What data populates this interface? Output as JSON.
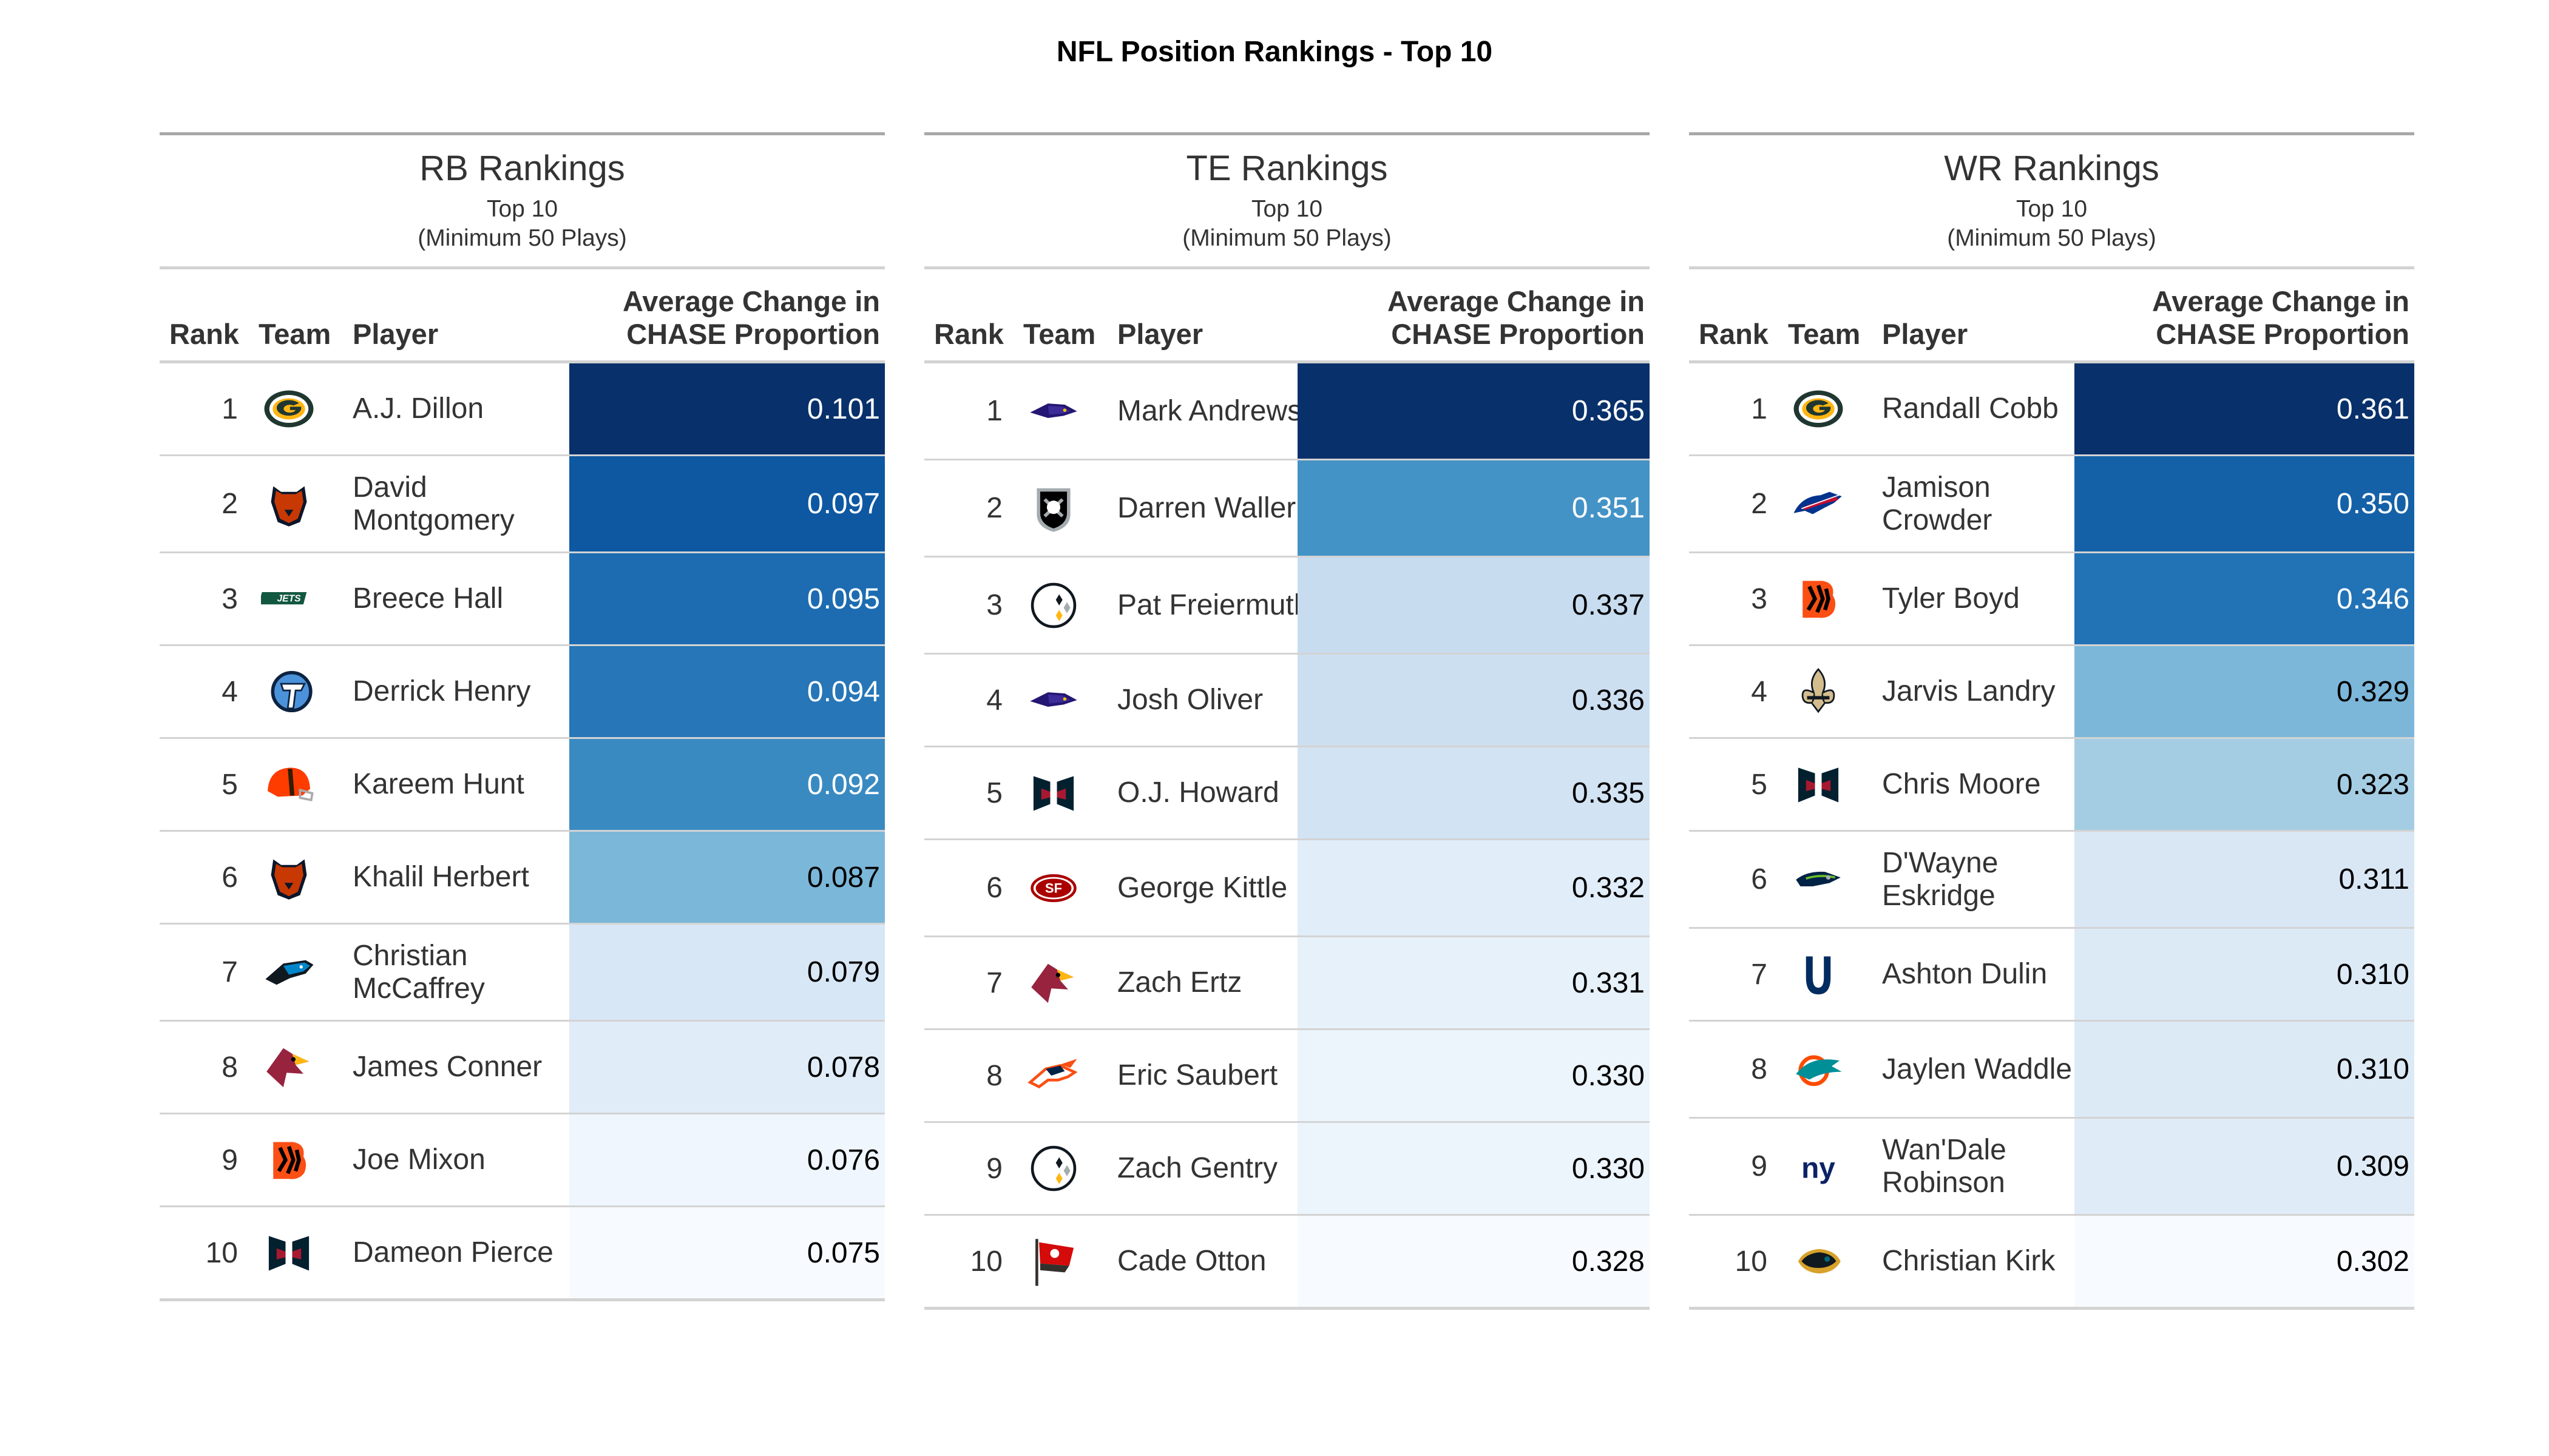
{
  "title": "NFL Position Rankings - Top 10",
  "chart_data": {
    "type": "table",
    "title": "NFL Position Rankings - Top 10",
    "columns": [
      "Rank",
      "Team",
      "Player",
      "Average Change in CHASE Proportion"
    ],
    "tables": [
      {
        "title": "RB Rankings",
        "subtitle_line1": "Top 10",
        "subtitle_line2": "(Minimum 50 Plays)",
        "header": {
          "rank": "Rank",
          "team": "Team",
          "player": "Player",
          "value_line1": "Average Change in",
          "value_line2": "CHASE Proportion"
        },
        "rows": [
          {
            "rank": "1",
            "team": "GB",
            "player": "A.J. Dillon",
            "value": "0.101"
          },
          {
            "rank": "2",
            "team": "CHI",
            "player": "David Montgomery",
            "value": "0.097"
          },
          {
            "rank": "3",
            "team": "NYJ",
            "player": "Breece Hall",
            "value": "0.095"
          },
          {
            "rank": "4",
            "team": "TEN",
            "player": "Derrick Henry",
            "value": "0.094"
          },
          {
            "rank": "5",
            "team": "CLE",
            "player": "Kareem Hunt",
            "value": "0.092"
          },
          {
            "rank": "6",
            "team": "CHI",
            "player": "Khalil Herbert",
            "value": "0.087"
          },
          {
            "rank": "7",
            "team": "CAR",
            "player": "Christian McCaffrey",
            "value": "0.079"
          },
          {
            "rank": "8",
            "team": "ARI",
            "player": "James Conner",
            "value": "0.078"
          },
          {
            "rank": "9",
            "team": "CIN",
            "player": "Joe Mixon",
            "value": "0.076"
          },
          {
            "rank": "10",
            "team": "HOU",
            "player": "Dameon Pierce",
            "value": "0.075"
          }
        ]
      },
      {
        "title": "TE Rankings",
        "subtitle_line1": "Top 10",
        "subtitle_line2": "(Minimum 50 Plays)",
        "header": {
          "rank": "Rank",
          "team": "Team",
          "player": "Player",
          "value_line1": "Average Change in",
          "value_line2": "CHASE Proportion"
        },
        "rows": [
          {
            "rank": "1",
            "team": "BAL",
            "player": "Mark Andrews",
            "value": "0.365"
          },
          {
            "rank": "2",
            "team": "LV",
            "player": "Darren Waller",
            "value": "0.351"
          },
          {
            "rank": "3",
            "team": "PIT",
            "player": "Pat Freiermuth",
            "value": "0.337"
          },
          {
            "rank": "4",
            "team": "BAL",
            "player": "Josh Oliver",
            "value": "0.336"
          },
          {
            "rank": "5",
            "team": "HOU",
            "player": "O.J. Howard",
            "value": "0.335"
          },
          {
            "rank": "6",
            "team": "SF",
            "player": "George Kittle",
            "value": "0.332"
          },
          {
            "rank": "7",
            "team": "ARI",
            "player": "Zach Ertz",
            "value": "0.331"
          },
          {
            "rank": "8",
            "team": "DEN",
            "player": "Eric Saubert",
            "value": "0.330"
          },
          {
            "rank": "9",
            "team": "PIT",
            "player": "Zach Gentry",
            "value": "0.330"
          },
          {
            "rank": "10",
            "team": "TB",
            "player": "Cade Otton",
            "value": "0.328"
          }
        ]
      },
      {
        "title": "WR Rankings",
        "subtitle_line1": "Top 10",
        "subtitle_line2": "(Minimum 50 Plays)",
        "header": {
          "rank": "Rank",
          "team": "Team",
          "player": "Player",
          "value_line1": "Average Change in",
          "value_line2": "CHASE Proportion"
        },
        "rows": [
          {
            "rank": "1",
            "team": "GB",
            "player": "Randall Cobb",
            "value": "0.361"
          },
          {
            "rank": "2",
            "team": "BUF",
            "player": "Jamison Crowder",
            "value": "0.350"
          },
          {
            "rank": "3",
            "team": "CIN",
            "player": "Tyler Boyd",
            "value": "0.346"
          },
          {
            "rank": "4",
            "team": "NO",
            "player": "Jarvis Landry",
            "value": "0.329"
          },
          {
            "rank": "5",
            "team": "HOU",
            "player": "Chris Moore",
            "value": "0.323"
          },
          {
            "rank": "6",
            "team": "SEA",
            "player": "D'Wayne Eskridge",
            "value": "0.311"
          },
          {
            "rank": "7",
            "team": "IND",
            "player": "Ashton Dulin",
            "value": "0.310"
          },
          {
            "rank": "8",
            "team": "MIA",
            "player": "Jaylen Waddle",
            "value": "0.310"
          },
          {
            "rank": "9",
            "team": "NYG",
            "player": "Wan'Dale Robinson",
            "value": "0.309"
          },
          {
            "rank": "10",
            "team": "JAX",
            "player": "Christian Kirk",
            "value": "0.302"
          }
        ]
      }
    ]
  },
  "color_scale": [
    "#f7fbff",
    "#deebf7",
    "#c6dbef",
    "#9ecae1",
    "#6baed6",
    "#4292c6",
    "#2171b5",
    "#08519c",
    "#08306b"
  ],
  "team_logo_icons": {
    "GB": {
      "icon": "packers-g-icon",
      "colors": [
        "#203731",
        "#FFB612"
      ]
    },
    "CHI": {
      "icon": "bears-head-icon",
      "colors": [
        "#C83803",
        "#0B162A"
      ]
    },
    "NYJ": {
      "icon": "jets-wordmark-icon",
      "colors": [
        "#125740",
        "#FFFFFF"
      ]
    },
    "TEN": {
      "icon": "titans-t-icon",
      "colors": [
        "#0C2340",
        "#4B92DB"
      ]
    },
    "CLE": {
      "icon": "browns-helmet-icon",
      "colors": [
        "#FF3C00",
        "#311D00"
      ]
    },
    "CAR": {
      "icon": "panthers-head-icon",
      "colors": [
        "#0085CA",
        "#101820"
      ]
    },
    "ARI": {
      "icon": "cardinals-head-icon",
      "colors": [
        "#97233F",
        "#FFB612"
      ]
    },
    "CIN": {
      "icon": "bengals-b-icon",
      "colors": [
        "#FB4F14",
        "#000000"
      ]
    },
    "HOU": {
      "icon": "texans-bull-icon",
      "colors": [
        "#03202F",
        "#A71930"
      ]
    },
    "BAL": {
      "icon": "ravens-head-icon",
      "colors": [
        "#241773",
        "#000000"
      ]
    },
    "LV": {
      "icon": "raiders-shield-icon",
      "colors": [
        "#000000",
        "#A5ACAF"
      ]
    },
    "PIT": {
      "icon": "steelers-logo-icon",
      "colors": [
        "#FFB612",
        "#101820"
      ]
    },
    "SF": {
      "icon": "49ers-oval-icon",
      "colors": [
        "#AA0000",
        "#B3995D"
      ]
    },
    "DEN": {
      "icon": "broncos-head-icon",
      "colors": [
        "#FB4F14",
        "#002244"
      ]
    },
    "TB": {
      "icon": "buccaneers-flag-icon",
      "colors": [
        "#D50A0A",
        "#34302B"
      ]
    },
    "BUF": {
      "icon": "bills-buffalo-icon",
      "colors": [
        "#00338D",
        "#C60C30"
      ]
    },
    "NO": {
      "icon": "saints-fleur-icon",
      "colors": [
        "#D3BC8D",
        "#101820"
      ]
    },
    "SEA": {
      "icon": "seahawks-head-icon",
      "colors": [
        "#002244",
        "#69BE28"
      ]
    },
    "IND": {
      "icon": "colts-horseshoe-icon",
      "colors": [
        "#002C5F",
        "#FFFFFF"
      ]
    },
    "MIA": {
      "icon": "dolphins-logo-icon",
      "colors": [
        "#008E97",
        "#FC4C02"
      ]
    },
    "NYG": {
      "icon": "giants-ny-icon",
      "colors": [
        "#0B2265",
        "#A71930"
      ]
    },
    "JAX": {
      "icon": "jaguars-head-icon",
      "colors": [
        "#006778",
        "#D7A22A"
      ]
    }
  }
}
